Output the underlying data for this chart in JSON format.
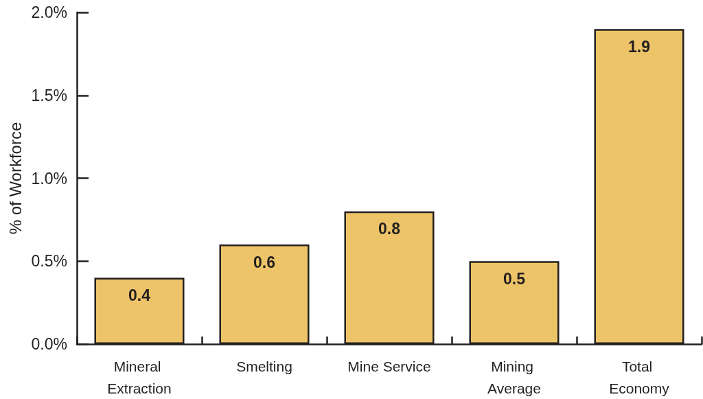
{
  "chart_data": {
    "type": "bar",
    "ylabel": "% of Workforce",
    "categories": [
      "Mineral Extraction",
      "Smelting",
      "Mine Service",
      "Mining Average",
      "Total Economy"
    ],
    "values": [
      0.4,
      0.6,
      0.8,
      0.5,
      1.9
    ],
    "color": "#eec468",
    "ylim": [
      0,
      2
    ],
    "yticks": [
      {
        "value": 0,
        "label": "0.0%"
      },
      {
        "value": 0.5,
        "label": "0.5%"
      },
      {
        "value": 1,
        "label": "1.0%"
      },
      {
        "value": 1.5,
        "label": "1.5%"
      },
      {
        "value": 2,
        "label": "2.0%"
      }
    ],
    "data_labels": true
  }
}
